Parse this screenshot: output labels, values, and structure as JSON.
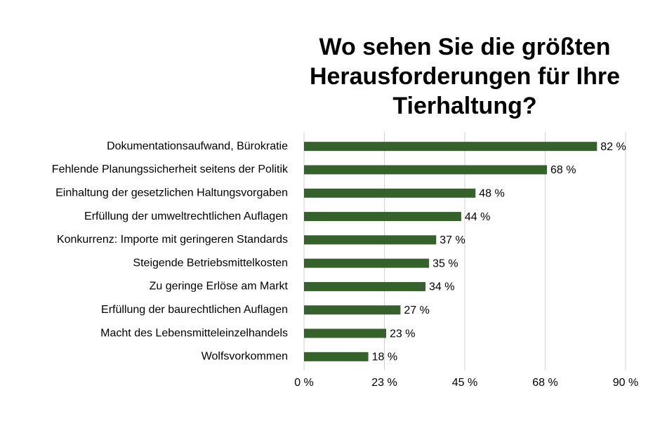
{
  "chart_data": {
    "type": "bar",
    "orientation": "horizontal",
    "title": "Wo sehen Sie die größten Herausforderungen für Ihre Tierhaltung?",
    "categories": [
      "Dokumentationsaufwand, Bürokratie",
      "Fehlende Planungssicherheit seitens der Politik",
      "Einhaltung der gesetzlichen Haltungsvorgaben",
      "Erfüllung der umweltrechtlichen Auflagen",
      "Konkurrenz: Importe mit geringeren Standards",
      "Steigende Betriebsmittelkosten",
      "Zu geringe Erlöse am Markt",
      "Erfüllung der baurechtlichen Auflagen",
      "Macht des Lebensmitteleinzelhandels",
      "Wolfsvorkommen"
    ],
    "values": [
      82,
      68,
      48,
      44,
      37,
      35,
      34,
      27,
      23,
      18
    ],
    "value_labels": [
      "82 %",
      "68 %",
      "48 %",
      "44 %",
      "37 %",
      "35 %",
      "34 %",
      "27 %",
      "23 %",
      "18 %"
    ],
    "color": "#35622b",
    "xlim": [
      0,
      90
    ],
    "xticks": [
      {
        "value": 0,
        "label": "0 %"
      },
      {
        "value": 22.5,
        "label": "23 %"
      },
      {
        "value": 45,
        "label": "45 %"
      },
      {
        "value": 67.5,
        "label": "68 %"
      },
      {
        "value": 90,
        "label": "90 %"
      }
    ],
    "grid": true
  }
}
